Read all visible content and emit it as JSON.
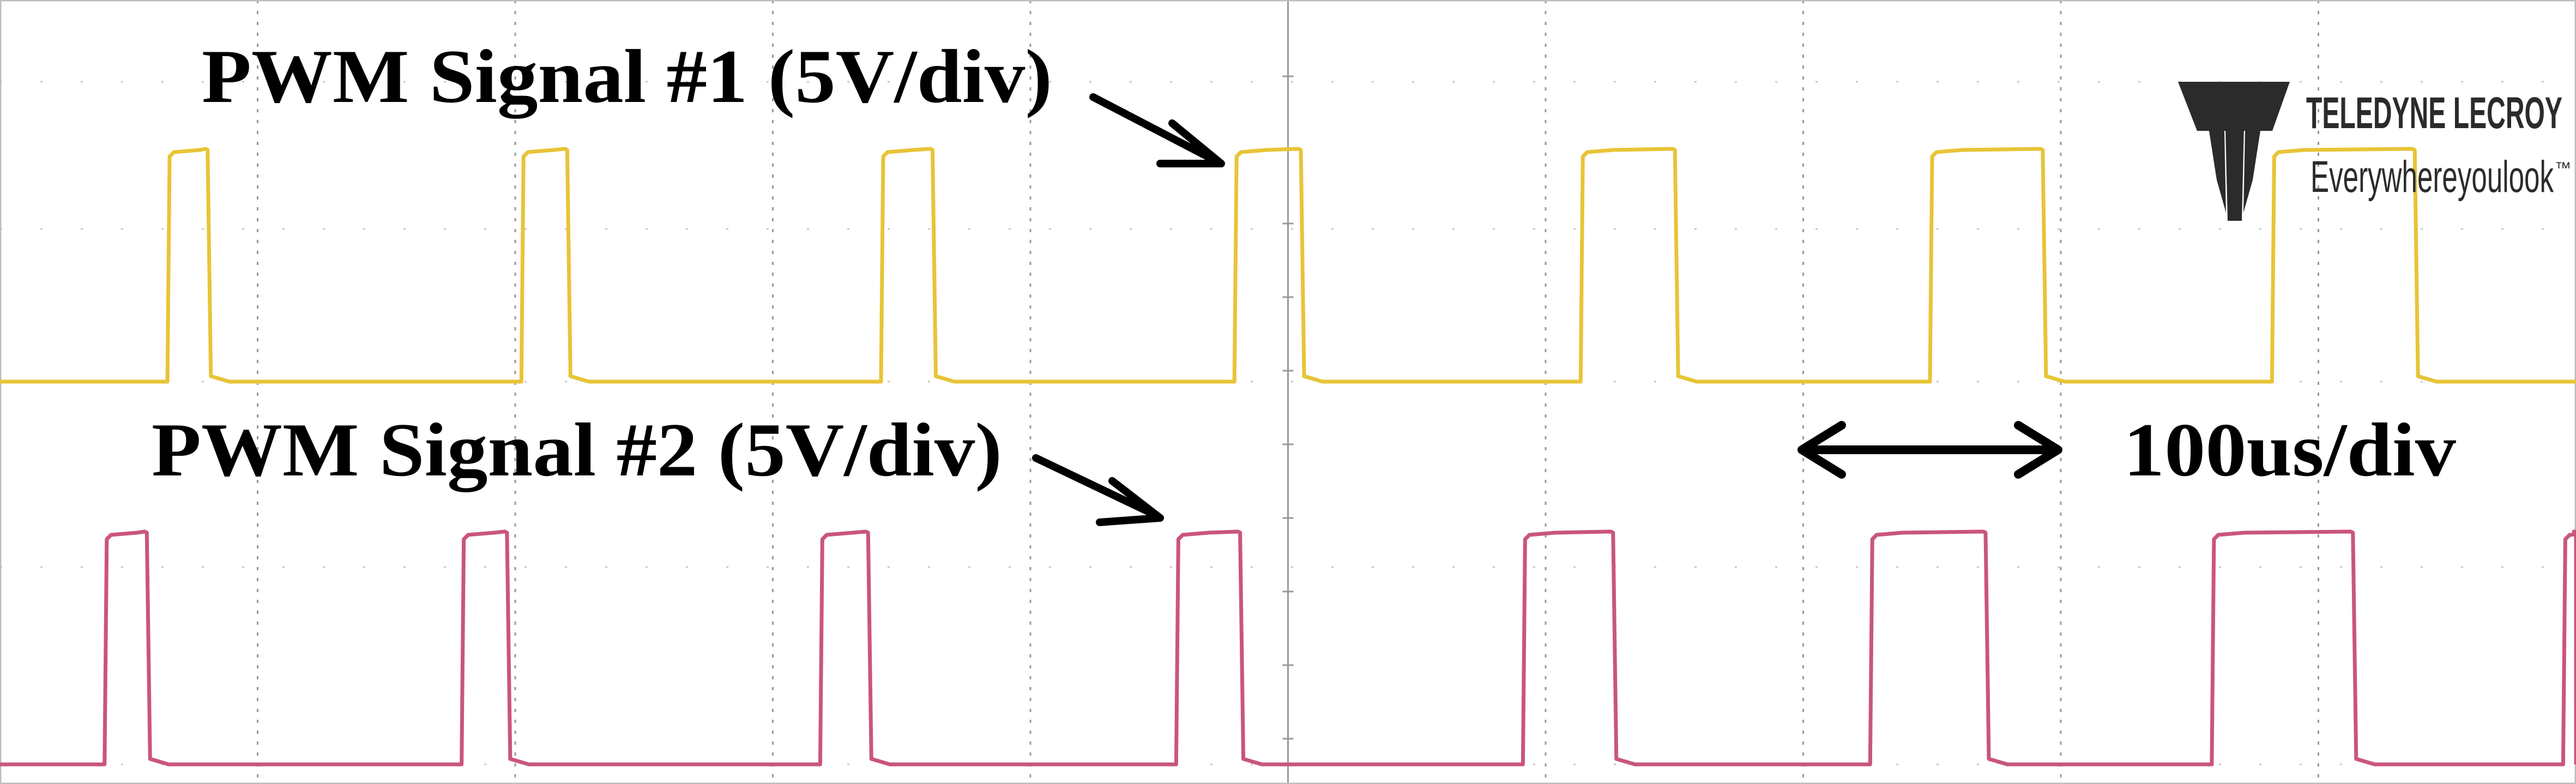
{
  "colors": {
    "background": "#ffffff",
    "grid": "#9a9a9a",
    "channel1": "#e8c437",
    "channel2": "#c9557f",
    "annotation": "#000000",
    "logo": "#2b2b2b"
  },
  "annotations": {
    "signal1": "PWM Signal #1 (5V/div)",
    "signal2": "PWM Signal #2 (5V/div)",
    "timebase": "100us/div"
  },
  "logo": {
    "brand": "TELEDYNE LECROY",
    "tagline": "Everywhereyoulook",
    "trademark": "™",
    "icon": "teledyne-t-icon"
  },
  "chart_data": [
    {
      "type": "line",
      "series": [
        {
          "name": "PWM Signal #1 (5V/div)",
          "color": "#e8c437",
          "unit": "V",
          "pulses": [
            {
              "rise_us": 32.5,
              "fall_us": 40.3
            },
            {
              "rise_us": 101.2,
              "fall_us": 110.1
            },
            {
              "rise_us": 171.0,
              "fall_us": 181.0
            },
            {
              "rise_us": 239.6,
              "fall_us": 252.5
            },
            {
              "rise_us": 306.8,
              "fall_us": 325.1
            },
            {
              "rise_us": 374.6,
              "fall_us": 396.5
            },
            {
              "rise_us": 441.0,
              "fall_us": 468.7
            }
          ],
          "high_level_div": 1.5,
          "low_level_div": 0
        },
        {
          "name": "PWM Signal #2 (5V/div)",
          "color": "#c9557f",
          "unit": "V",
          "pulses": [
            {
              "rise_us": 20.3,
              "fall_us": 28.5
            },
            {
              "rise_us": 89.6,
              "fall_us": 98.4
            },
            {
              "rise_us": 159.2,
              "fall_us": 168.5
            },
            {
              "rise_us": 228.3,
              "fall_us": 240.7
            },
            {
              "rise_us": 295.6,
              "fall_us": 313.1
            },
            {
              "rise_us": 363.0,
              "fall_us": 385.4
            },
            {
              "rise_us": 429.3,
              "fall_us": 456.7
            },
            {
              "rise_us": 497.5,
              "fall_us": 500.0
            }
          ],
          "high_level_div": 1.5,
          "low_level_div": 0
        }
      ],
      "time_per_div_us": 100,
      "volts_per_div": 5,
      "xlim_us": [
        0,
        500
      ],
      "grid": true,
      "xlabel": "",
      "ylabel": "",
      "title": ""
    }
  ]
}
